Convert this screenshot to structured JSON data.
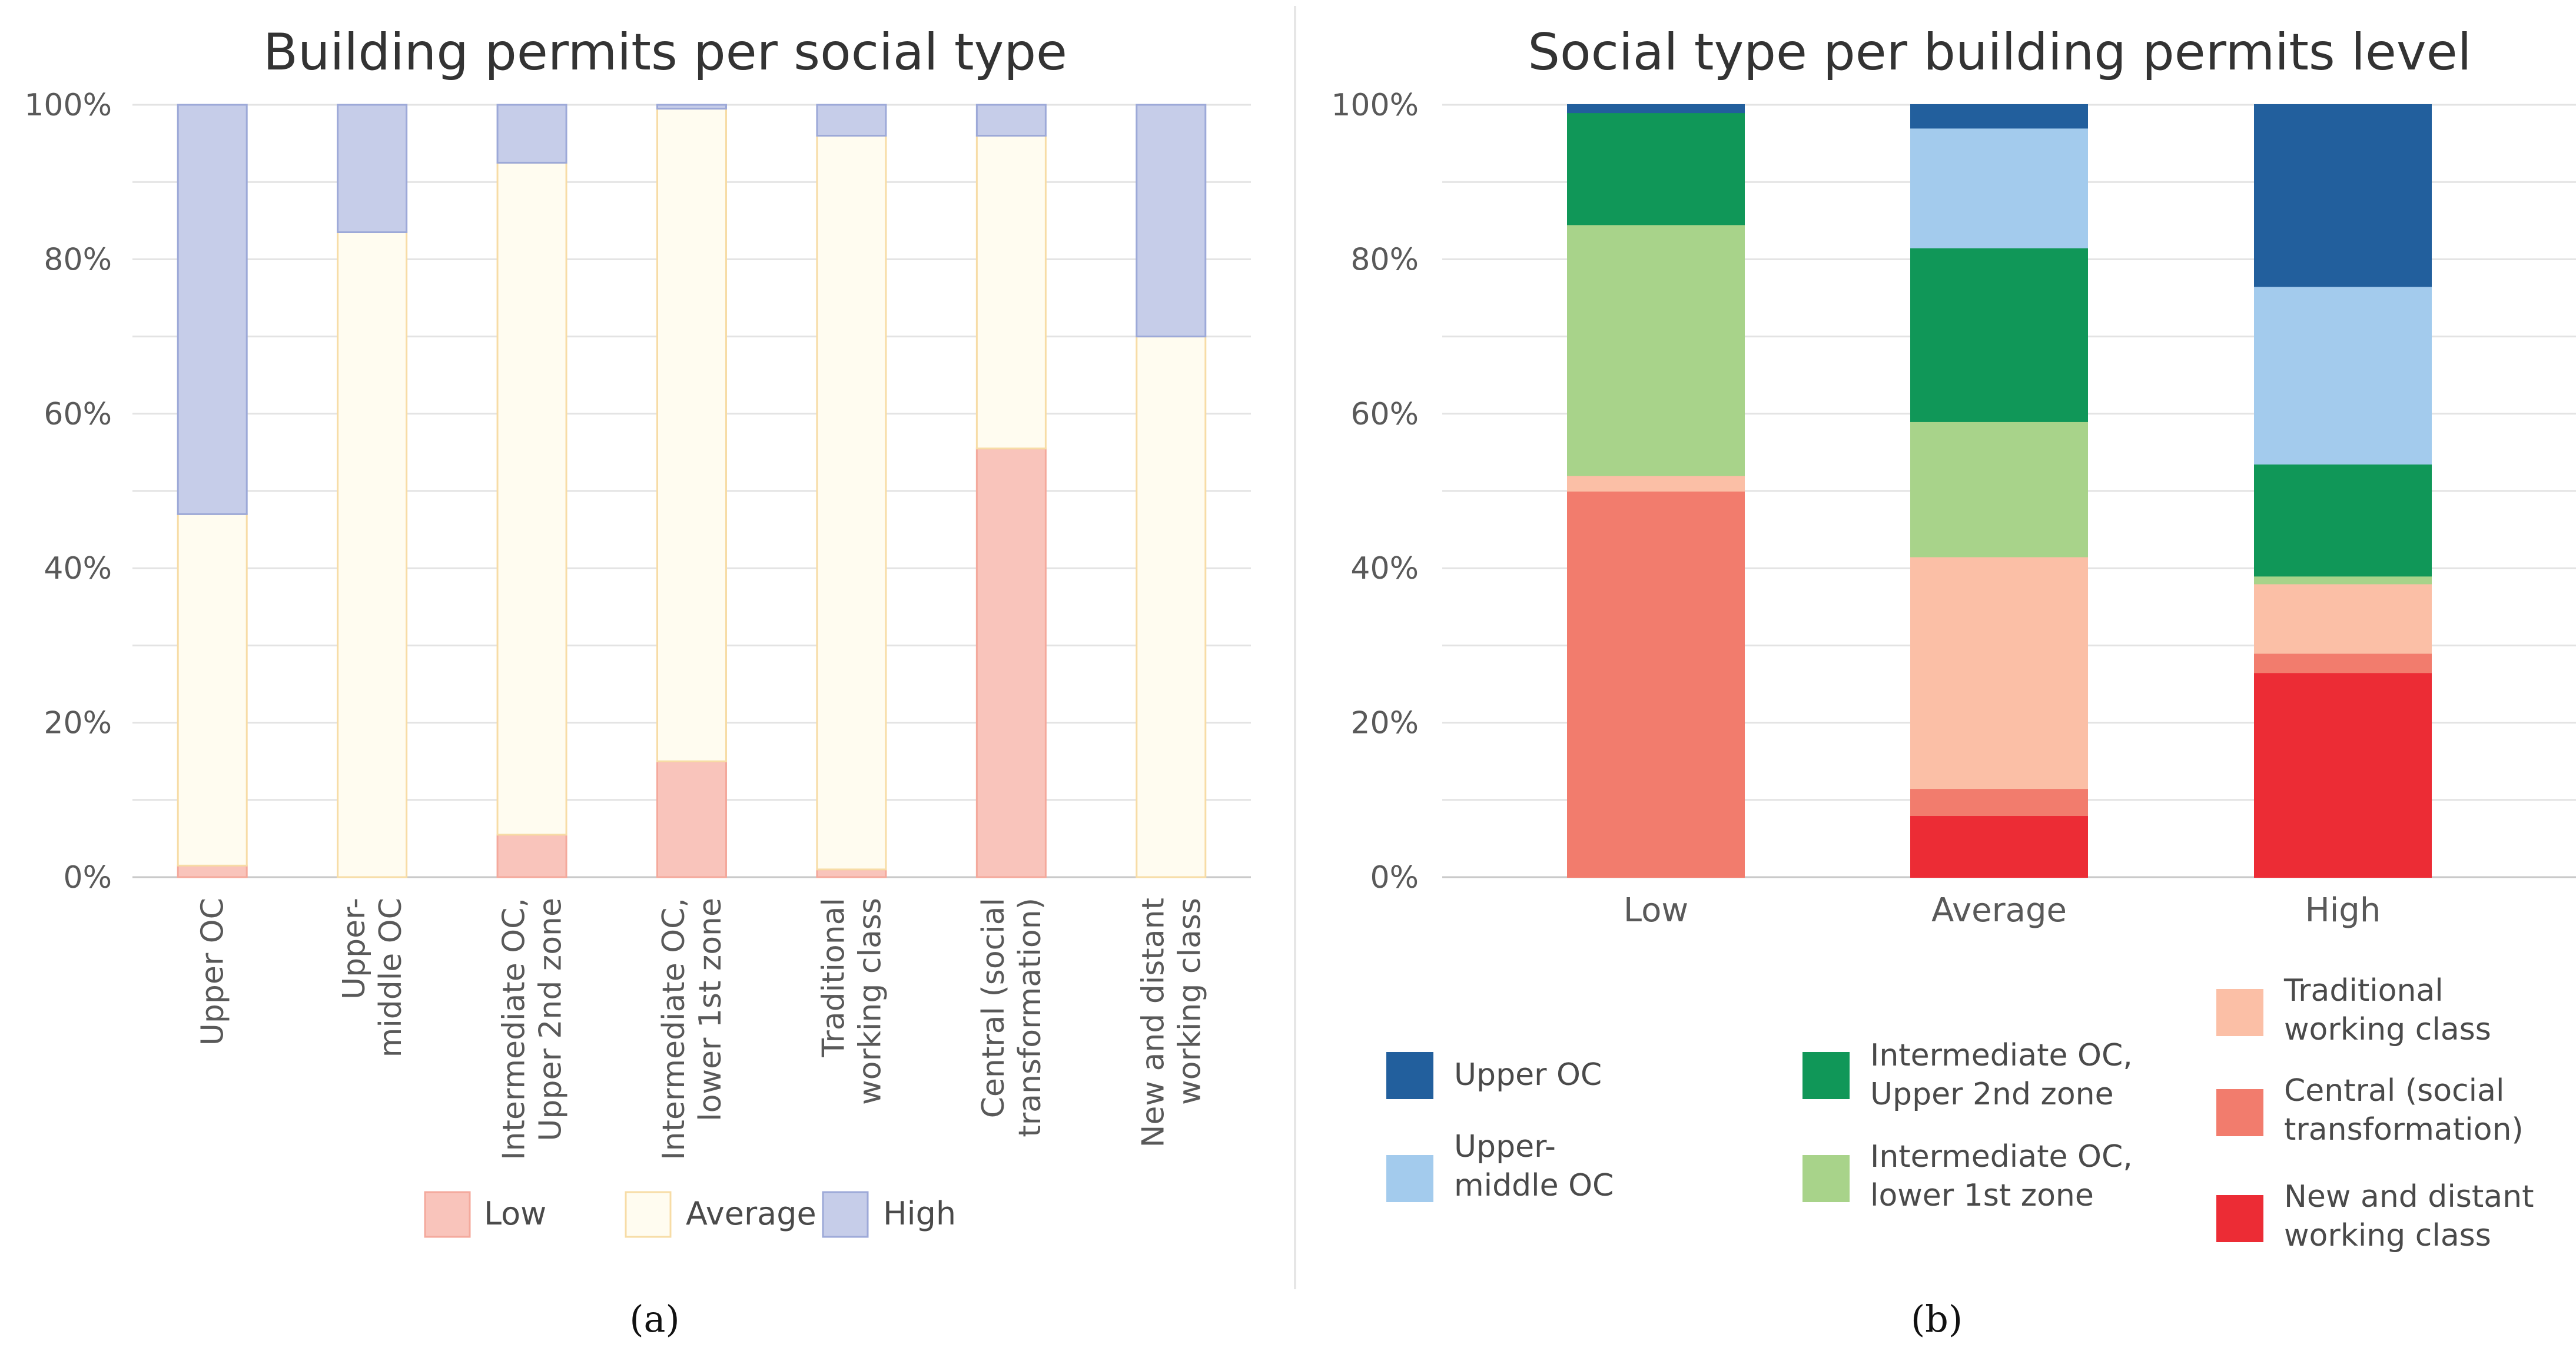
{
  "chart_data": [
    {
      "type": "bar",
      "stacked": true,
      "title": "Building permits per social type",
      "caption": "(a)",
      "ylim": [
        0,
        100
      ],
      "yticks": [
        "0%",
        "20%",
        "40%",
        "60%",
        "80%",
        "100%"
      ],
      "categories": [
        [
          "Upper OC"
        ],
        [
          "Upper-",
          "middle OC"
        ],
        [
          "Intermediate OC,",
          "Upper 2nd zone"
        ],
        [
          "Intermediate OC,",
          "lower 1st zone"
        ],
        [
          "Traditional",
          "working class"
        ],
        [
          "Central (social",
          "transformation)"
        ],
        [
          "New and distant",
          "working class"
        ]
      ],
      "series": [
        {
          "name": "Low",
          "color": "#f9c4bb",
          "stroke": "#f4a99c",
          "values": [
            1.5,
            0,
            5.5,
            15,
            1,
            55.5,
            0
          ]
        },
        {
          "name": "Average",
          "color": "#fffcf0",
          "stroke": "#f7dca6",
          "values": [
            45.5,
            83.5,
            87,
            84.5,
            95,
            40.5,
            70
          ]
        },
        {
          "name": "High",
          "color": "#c6cde9",
          "stroke": "#9da9d8",
          "values": [
            53,
            16.5,
            7.5,
            0.5,
            4,
            4,
            30
          ]
        }
      ],
      "legend": [
        "Low",
        "Average",
        "High"
      ]
    },
    {
      "type": "bar",
      "stacked": true,
      "title": "Social type per building permits level",
      "caption": "(b)",
      "ylim": [
        0,
        100
      ],
      "yticks": [
        "0%",
        "20%",
        "40%",
        "60%",
        "80%",
        "100%"
      ],
      "categories": [
        "Low",
        "Average",
        "High"
      ],
      "series": [
        {
          "name": "New and distant working class",
          "legend_lines": [
            "New and distant",
            "working class"
          ],
          "color": "#ec2c35",
          "values": [
            0,
            8,
            26.5
          ]
        },
        {
          "name": "Central (social transformation)",
          "legend_lines": [
            "Central (social",
            "transformation)"
          ],
          "color": "#f27c6d",
          "values": [
            50,
            3.5,
            2.5
          ]
        },
        {
          "name": "Traditional working class",
          "legend_lines": [
            "Traditional",
            "working class"
          ],
          "color": "#fbbfa6",
          "values": [
            2,
            30,
            9
          ]
        },
        {
          "name": "Intermediate OC, lower 1st zone",
          "legend_lines": [
            "Intermediate OC,",
            "lower 1st zone"
          ],
          "color": "#a8d38a",
          "values": [
            32.5,
            17.5,
            1
          ]
        },
        {
          "name": "Intermediate OC, Upper 2nd zone",
          "legend_lines": [
            "Intermediate OC,",
            "Upper 2nd zone"
          ],
          "color": "#109758",
          "values": [
            14.5,
            22.5,
            14.5
          ]
        },
        {
          "name": "Upper-middle OC",
          "legend_lines": [
            "Upper-",
            "middle OC"
          ],
          "color": "#a3cbed",
          "values": [
            0,
            15.5,
            23
          ]
        },
        {
          "name": "Upper OC",
          "legend_lines": [
            "Upper OC"
          ],
          "color": "#225f9d",
          "values": [
            1,
            3,
            23.5
          ]
        }
      ]
    }
  ]
}
